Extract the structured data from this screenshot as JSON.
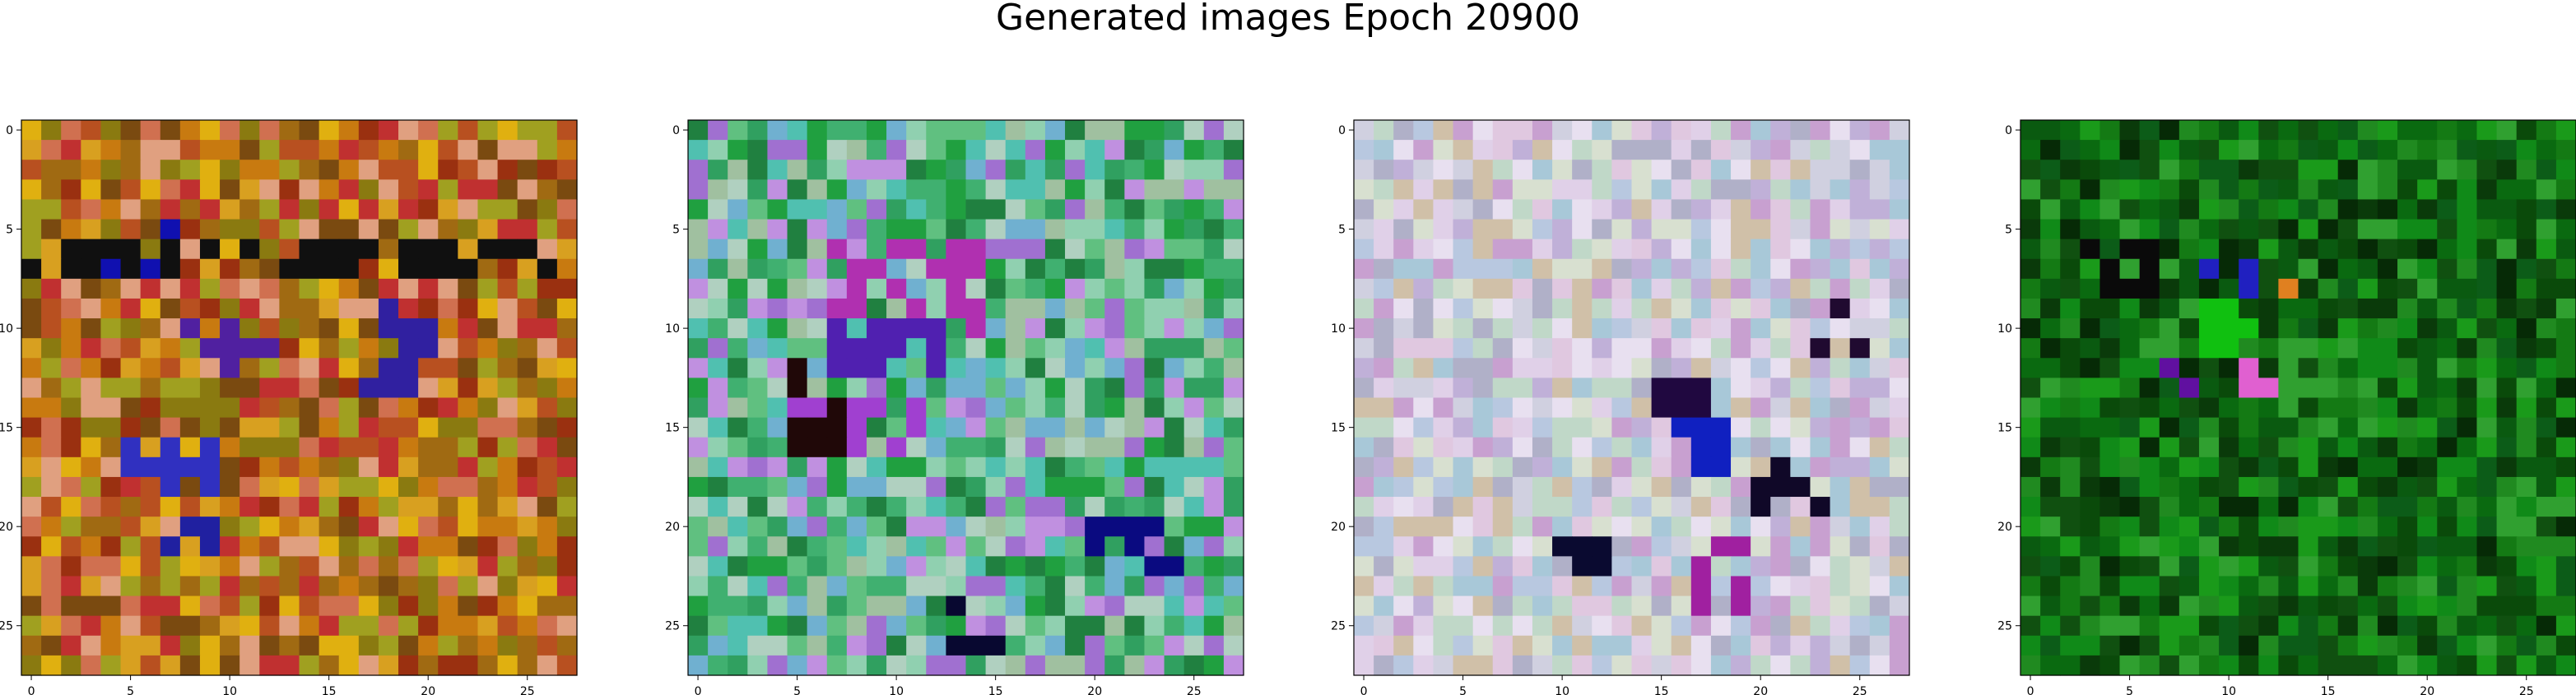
{
  "figure": {
    "title": "Generated images Epoch 20900"
  },
  "chart_data": [
    {
      "type": "heatmap",
      "title": "",
      "grid_size": [
        28,
        28
      ],
      "xlim": [
        -0.5,
        27.5
      ],
      "ylim": [
        27.5,
        -0.5
      ],
      "x_ticks": [
        "0",
        "5",
        "10",
        "15",
        "20",
        "25"
      ],
      "y_ticks": [
        "0",
        "5",
        "10",
        "15",
        "20",
        "25"
      ],
      "grid": false,
      "palette": [
        "#c87a10",
        "#a06a12",
        "#d8a020",
        "#b85020",
        "#8a7a10",
        "#c03030",
        "#a0a020",
        "#e0b010",
        "#7a4a10",
        "#d07050",
        "#e0a080",
        "#9a3010"
      ],
      "accents": [
        {
          "rows": [
            6,
            7
          ],
          "cols": [
            0,
            27
          ],
          "color": "#101010"
        },
        {
          "rows": [
            5,
            7
          ],
          "cols": [
            4,
            7
          ],
          "color": "#1010b0"
        },
        {
          "rows": [
            10,
            12
          ],
          "cols": [
            8,
            13
          ],
          "color": "#5020a0"
        },
        {
          "rows": [
            9,
            13
          ],
          "cols": [
            17,
            20
          ],
          "color": "#3020a0"
        },
        {
          "rows": [
            16,
            18
          ],
          "cols": [
            5,
            9
          ],
          "color": "#3030c0"
        },
        {
          "rows": [
            20,
            22
          ],
          "cols": [
            7,
            9
          ],
          "color": "#2020a0"
        }
      ],
      "seed": 11
    },
    {
      "type": "heatmap",
      "title": "",
      "grid_size": [
        28,
        28
      ],
      "xlim": [
        -0.5,
        27.5
      ],
      "ylim": [
        27.5,
        -0.5
      ],
      "x_ticks": [
        "0",
        "5",
        "10",
        "15",
        "20",
        "25"
      ],
      "y_ticks": [
        "0",
        "5",
        "10",
        "15",
        "20",
        "25"
      ],
      "grid": false,
      "palette": [
        "#30a060",
        "#60c080",
        "#90d0b0",
        "#40b070",
        "#a0c0a0",
        "#70b0d0",
        "#c090e0",
        "#a070d0",
        "#20a040",
        "#208040",
        "#b0d0c0",
        "#50c0b0"
      ],
      "accents": [
        {
          "rows": [
            6,
            10
          ],
          "cols": [
            7,
            14
          ],
          "color": "#b030b0"
        },
        {
          "rows": [
            10,
            12
          ],
          "cols": [
            7,
            12
          ],
          "color": "#5020b0"
        },
        {
          "rows": [
            14,
            16
          ],
          "cols": [
            5,
            11
          ],
          "color": "#a040d0"
        },
        {
          "rows": [
            20,
            22
          ],
          "cols": [
            20,
            24
          ],
          "color": "#0a0a80"
        },
        {
          "rows": [
            12,
            16
          ],
          "cols": [
            5,
            7
          ],
          "color": "#200808"
        },
        {
          "rows": [
            24,
            26
          ],
          "cols": [
            13,
            15
          ],
          "color": "#080830"
        }
      ],
      "seed": 23
    },
    {
      "type": "heatmap",
      "title": "",
      "grid_size": [
        28,
        28
      ],
      "xlim": [
        -0.5,
        27.5
      ],
      "ylim": [
        27.5,
        -0.5
      ],
      "x_ticks": [
        "0",
        "5",
        "10",
        "15",
        "20",
        "25"
      ],
      "y_ticks": [
        "0",
        "5",
        "10",
        "15",
        "20",
        "25"
      ],
      "grid": false,
      "palette": [
        "#d0d0e0",
        "#c0b0d8",
        "#e0d0e8",
        "#b8c8e0",
        "#d8e0d0",
        "#c8a0d0",
        "#e0c8e0",
        "#a8c8d8",
        "#d0c0a8",
        "#e8e0f0",
        "#b0b0c8",
        "#c0d8c8"
      ],
      "accents": [
        {
          "rows": [
            13,
            15
          ],
          "cols": [
            14,
            17
          ],
          "color": "#200840"
        },
        {
          "rows": [
            17,
            19
          ],
          "cols": [
            20,
            23
          ],
          "color": "#100828"
        },
        {
          "rows": [
            21,
            23
          ],
          "cols": [
            10,
            12
          ],
          "color": "#0a0a30"
        },
        {
          "rows": [
            9,
            11
          ],
          "cols": [
            23,
            25
          ],
          "color": "#200a30"
        },
        {
          "rows": [
            15,
            17
          ],
          "cols": [
            16,
            18
          ],
          "color": "#1020c0"
        },
        {
          "rows": [
            21,
            24
          ],
          "cols": [
            17,
            19
          ],
          "color": "#a020a0"
        }
      ],
      "seed": 37
    },
    {
      "type": "heatmap",
      "title": "",
      "grid_size": [
        28,
        28
      ],
      "xlim": [
        -0.5,
        27.5
      ],
      "ylim": [
        27.5,
        -0.5
      ],
      "x_ticks": [
        "0",
        "5",
        "10",
        "15",
        "20",
        "25"
      ],
      "y_ticks": [
        "0",
        "5",
        "10",
        "15",
        "20",
        "25"
      ],
      "grid": false,
      "palette": [
        "#0a6a10",
        "#108a18",
        "#0a5a10",
        "#147a14",
        "#0a4a0a",
        "#208a20",
        "#0a3a0a",
        "#1a9a1a",
        "#0c5c18",
        "#062a06",
        "#30a030",
        "#105010"
      ],
      "accents": [
        {
          "rows": [
            6,
            8
          ],
          "cols": [
            3,
            6
          ],
          "color": "#0a0a0a"
        },
        {
          "rows": [
            7,
            9
          ],
          "cols": [
            8,
            11
          ],
          "color": "#2020c0"
        },
        {
          "rows": [
            9,
            11
          ],
          "cols": [
            9,
            11
          ],
          "color": "#10c010"
        },
        {
          "rows": [
            12,
            13
          ],
          "cols": [
            7,
            9
          ],
          "color": "#6010a0"
        },
        {
          "rows": [
            8,
            9
          ],
          "cols": [
            13,
            14
          ],
          "color": "#e08020"
        },
        {
          "rows": [
            12,
            13
          ],
          "cols": [
            11,
            12
          ],
          "color": "#e060d0"
        }
      ],
      "seed": 53
    }
  ]
}
